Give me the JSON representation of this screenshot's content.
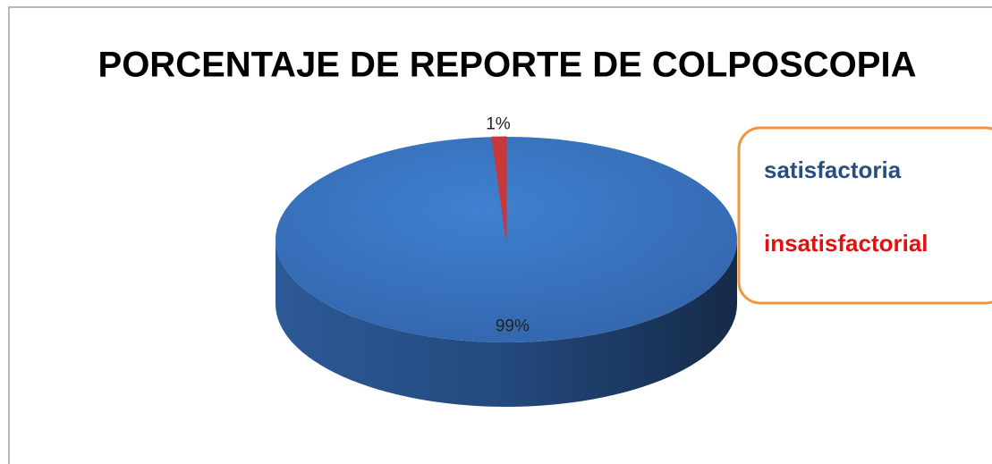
{
  "chart_data": {
    "type": "pie",
    "title": "PORCENTAJE DE REPORTE DE COLPOSCOPIA",
    "categories": [
      "satisfactoria",
      "insatisfactorial"
    ],
    "values": [
      99,
      1
    ],
    "value_labels": [
      "99%",
      "1%"
    ],
    "colors": [
      "#3a78c8",
      "#c8383a"
    ],
    "label_colors": [
      "#2a4d80",
      "#e31010"
    ],
    "legend": "right"
  }
}
